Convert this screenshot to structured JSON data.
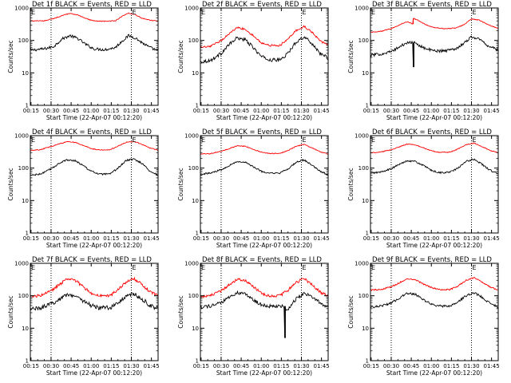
{
  "figure": {
    "xlabel": "Start Time (22-Apr-07 00:12:20)",
    "ylabel": "Counts/sec",
    "x_tick_labels": [
      "00:15",
      "00:30",
      "00:45",
      "01:00",
      "01:15",
      "01:30",
      "01:45"
    ],
    "y_tick_labels": [
      "1",
      "10",
      "100",
      "1000"
    ],
    "marker_label": "E",
    "colors": {
      "events": "#000000",
      "lld": "#ff0000",
      "dotted": "#000000"
    }
  },
  "chart_data": [
    {
      "type": "line",
      "title": "Det 1f BLACK = Events, RED = LLD",
      "xlabel": "Start Time (22-Apr-07 00:12:20)",
      "ylabel": "Counts/sec",
      "x_unit": "minutes after 00:00",
      "xlim": [
        14.5,
        110
      ],
      "ylim": [
        1,
        1000
      ],
      "y_scale": "log",
      "dotted_vlines": [
        30,
        90
      ],
      "markers": [
        {
          "x": 14.5,
          "label": "E"
        },
        {
          "x": 90,
          "label": "E"
        }
      ],
      "series": [
        {
          "name": "Events",
          "color": "#000000",
          "x": [
            14.5,
            25,
            32,
            38,
            44,
            50,
            56,
            62,
            70,
            78,
            83,
            88,
            93,
            98,
            104,
            110
          ],
          "y": [
            50,
            55,
            65,
            110,
            140,
            115,
            75,
            55,
            52,
            60,
            95,
            140,
            120,
            85,
            60,
            48
          ],
          "noise": 0.1
        },
        {
          "name": "LLD",
          "color": "#ff0000",
          "x": [
            14.5,
            25,
            32,
            38,
            44,
            50,
            56,
            62,
            70,
            78,
            83,
            88,
            93,
            98,
            104,
            110
          ],
          "y": [
            400,
            400,
            470,
            580,
            680,
            600,
            470,
            400,
            390,
            400,
            550,
            700,
            620,
            480,
            420,
            390
          ],
          "noise": 0.03
        }
      ]
    },
    {
      "type": "line",
      "title": "Det 2f BLACK = Events, RED = LLD",
      "xlabel": "Start Time (22-Apr-07 00:12:20)",
      "ylabel": "Counts/sec",
      "x_unit": "minutes after 00:00",
      "xlim": [
        14.5,
        110
      ],
      "ylim": [
        1,
        1000
      ],
      "y_scale": "log",
      "dotted_vlines": [
        30,
        90
      ],
      "markers": [
        {
          "x": 14.5,
          "label": "E"
        },
        {
          "x": 90,
          "label": "E"
        }
      ],
      "series": [
        {
          "name": "Events",
          "color": "#000000",
          "x": [
            14.5,
            22,
            30,
            36,
            42,
            48,
            54,
            60,
            66,
            74,
            80,
            86,
            92,
            98,
            104,
            110
          ],
          "y": [
            22,
            24,
            40,
            75,
            120,
            105,
            60,
            32,
            25,
            25,
            40,
            90,
            130,
            80,
            40,
            28
          ],
          "noise": 0.12
        },
        {
          "name": "LLD",
          "color": "#ff0000",
          "x": [
            14.5,
            22,
            30,
            36,
            42,
            48,
            54,
            60,
            66,
            74,
            80,
            86,
            92,
            98,
            104,
            110
          ],
          "y": [
            60,
            65,
            100,
            160,
            250,
            220,
            140,
            85,
            70,
            70,
            110,
            200,
            270,
            180,
            95,
            75
          ],
          "noise": 0.07
        }
      ]
    },
    {
      "type": "line",
      "title": "Det 3f BLACK = Events, RED = LLD",
      "xlabel": "Start Time (22-Apr-07 00:12:20)",
      "ylabel": "Counts/sec",
      "x_unit": "minutes after 00:00",
      "xlim": [
        14.5,
        110
      ],
      "ylim": [
        1,
        1000
      ],
      "y_scale": "log",
      "dotted_vlines": [
        30,
        90
      ],
      "markers": [
        {
          "x": 14.5,
          "label": "E"
        },
        {
          "x": 90,
          "label": "E"
        }
      ],
      "series": [
        {
          "name": "Events",
          "color": "#000000",
          "x": [
            14.5,
            22,
            30,
            38,
            44,
            46,
            46.5,
            47,
            50,
            56,
            62,
            70,
            78,
            84,
            90,
            96,
            102,
            110
          ],
          "y": [
            35,
            38,
            45,
            70,
            90,
            85,
            15,
            90,
            75,
            55,
            48,
            48,
            55,
            80,
            130,
            110,
            70,
            50
          ],
          "noise": 0.1
        },
        {
          "name": "LLD",
          "color": "#ff0000",
          "x": [
            14.5,
            22,
            30,
            36,
            42,
            46,
            46.5,
            50,
            56,
            62,
            70,
            78,
            84,
            90,
            96,
            102,
            110
          ],
          "y": [
            180,
            190,
            230,
            300,
            380,
            320,
            480,
            420,
            300,
            250,
            230,
            240,
            300,
            460,
            420,
            310,
            230
          ],
          "noise": 0.03
        }
      ]
    },
    {
      "type": "line",
      "title": "Det 4f BLACK = Events, RED = LLD",
      "xlabel": "Start Time (22-Apr-07 00:12:20)",
      "ylabel": "Counts/sec",
      "x_unit": "minutes after 00:00",
      "xlim": [
        14.5,
        110
      ],
      "ylim": [
        1,
        1000
      ],
      "y_scale": "log",
      "dotted_vlines": [
        30,
        90
      ],
      "markers": [
        {
          "x": 14.5,
          "label": "E"
        },
        {
          "x": 90,
          "label": "E"
        }
      ],
      "series": [
        {
          "name": "Events",
          "color": "#000000",
          "x": [
            14.5,
            22,
            30,
            36,
            42,
            48,
            54,
            60,
            66,
            74,
            80,
            86,
            92,
            98,
            104,
            110
          ],
          "y": [
            60,
            65,
            95,
            140,
            180,
            170,
            120,
            80,
            65,
            65,
            100,
            170,
            190,
            140,
            80,
            60
          ],
          "noise": 0.06
        },
        {
          "name": "LLD",
          "color": "#ff0000",
          "x": [
            14.5,
            22,
            30,
            36,
            42,
            48,
            54,
            60,
            66,
            74,
            80,
            86,
            92,
            98,
            104,
            110
          ],
          "y": [
            350,
            370,
            460,
            560,
            650,
            620,
            500,
            400,
            360,
            370,
            470,
            620,
            660,
            540,
            420,
            360
          ],
          "noise": 0.03
        }
      ]
    },
    {
      "type": "line",
      "title": "Det 5f BLACK = Events, RED = LLD",
      "xlabel": "Start Time (22-Apr-07 00:12:20)",
      "ylabel": "Counts/sec",
      "x_unit": "minutes after 00:00",
      "xlim": [
        14.5,
        110
      ],
      "ylim": [
        1,
        1000
      ],
      "y_scale": "log",
      "dotted_vlines": [
        30,
        90
      ],
      "markers": [
        {
          "x": 14.5,
          "label": "E"
        },
        {
          "x": 90,
          "label": "E"
        }
      ],
      "series": [
        {
          "name": "Events",
          "color": "#000000",
          "x": [
            14.5,
            22,
            30,
            36,
            42,
            48,
            54,
            60,
            66,
            74,
            80,
            86,
            92,
            98,
            104,
            110
          ],
          "y": [
            65,
            70,
            90,
            120,
            160,
            150,
            110,
            80,
            68,
            70,
            95,
            150,
            180,
            120,
            80,
            62
          ],
          "noise": 0.06
        },
        {
          "name": "LLD",
          "color": "#ff0000",
          "x": [
            14.5,
            22,
            30,
            36,
            42,
            48,
            54,
            60,
            66,
            74,
            80,
            86,
            92,
            98,
            104,
            110
          ],
          "y": [
            270,
            280,
            330,
            400,
            490,
            470,
            380,
            310,
            280,
            285,
            350,
            470,
            540,
            420,
            320,
            270
          ],
          "noise": 0.03
        }
      ]
    },
    {
      "type": "line",
      "title": "Det 6f BLACK = Events, RED = LLD",
      "xlabel": "Start Time (22-Apr-07 00:12:20)",
      "ylabel": "Counts/sec",
      "x_unit": "minutes after 00:00",
      "xlim": [
        14.5,
        110
      ],
      "ylim": [
        1,
        1000
      ],
      "y_scale": "log",
      "dotted_vlines": [
        30,
        90
      ],
      "markers": [
        {
          "x": 14.5,
          "label": "E"
        },
        {
          "x": 90,
          "label": "E"
        }
      ],
      "series": [
        {
          "name": "Events",
          "color": "#000000",
          "x": [
            14.5,
            22,
            30,
            36,
            42,
            48,
            54,
            60,
            66,
            74,
            80,
            86,
            92,
            98,
            104,
            110
          ],
          "y": [
            70,
            75,
            95,
            130,
            170,
            160,
            120,
            85,
            72,
            75,
            100,
            160,
            190,
            130,
            85,
            68
          ],
          "noise": 0.06
        },
        {
          "name": "LLD",
          "color": "#ff0000",
          "x": [
            14.5,
            22,
            30,
            36,
            42,
            48,
            54,
            60,
            66,
            74,
            80,
            86,
            92,
            98,
            104,
            110
          ],
          "y": [
            300,
            310,
            370,
            450,
            550,
            520,
            420,
            340,
            305,
            310,
            390,
            520,
            590,
            460,
            350,
            300
          ],
          "noise": 0.03
        }
      ]
    },
    {
      "type": "line",
      "title": "Det 7f BLACK = Events, RED = LLD",
      "xlabel": "Start Time (22-Apr-07 00:12:20)",
      "ylabel": "Counts/sec",
      "x_unit": "minutes after 00:00",
      "xlim": [
        14.5,
        110
      ],
      "ylim": [
        1,
        1000
      ],
      "y_scale": "log",
      "dotted_vlines": [
        30,
        90
      ],
      "markers": [
        {
          "x": 14.5,
          "label": "E"
        },
        {
          "x": 90,
          "label": "E"
        }
      ],
      "series": [
        {
          "name": "Events",
          "color": "#000000",
          "x": [
            14.5,
            22,
            30,
            36,
            42,
            48,
            54,
            60,
            66,
            74,
            80,
            86,
            92,
            98,
            104,
            110
          ],
          "y": [
            40,
            42,
            55,
            80,
            110,
            100,
            70,
            50,
            42,
            43,
            60,
            95,
            115,
            80,
            50,
            40
          ],
          "noise": 0.15
        },
        {
          "name": "LLD",
          "color": "#ff0000",
          "x": [
            14.5,
            22,
            30,
            36,
            42,
            48,
            54,
            60,
            66,
            74,
            80,
            86,
            92,
            98,
            104,
            110
          ],
          "y": [
            95,
            100,
            140,
            220,
            330,
            300,
            190,
            120,
            100,
            100,
            150,
            260,
            340,
            220,
            130,
            100
          ],
          "noise": 0.1
        }
      ]
    },
    {
      "type": "line",
      "title": "Det 8f BLACK = Events, RED = LLD",
      "xlabel": "Start Time (22-Apr-07 00:12:20)",
      "ylabel": "Counts/sec",
      "x_unit": "minutes after 00:00",
      "xlim": [
        14.5,
        110
      ],
      "ylim": [
        1,
        1000
      ],
      "y_scale": "log",
      "dotted_vlines": [
        30,
        90
      ],
      "markers": [
        {
          "x": 14.5,
          "label": "E"
        },
        {
          "x": 90,
          "label": "E"
        }
      ],
      "series": [
        {
          "name": "Events",
          "color": "#000000",
          "x": [
            14.5,
            22,
            30,
            36,
            42,
            48,
            54,
            60,
            66,
            72,
            76,
            77,
            77.5,
            78,
            79,
            82,
            86,
            92,
            98,
            104,
            110
          ],
          "y": [
            45,
            48,
            60,
            90,
            125,
            115,
            75,
            52,
            48,
            48,
            48,
            48,
            5,
            48,
            35,
            50,
            80,
            120,
            95,
            60,
            42
          ],
          "noise": 0.12
        },
        {
          "name": "LLD",
          "color": "#ff0000",
          "x": [
            14.5,
            22,
            30,
            36,
            42,
            48,
            54,
            60,
            66,
            74,
            80,
            86,
            92,
            98,
            104,
            110
          ],
          "y": [
            95,
            100,
            140,
            220,
            330,
            300,
            190,
            120,
            100,
            100,
            150,
            260,
            340,
            220,
            130,
            100
          ],
          "noise": 0.1
        }
      ]
    },
    {
      "type": "line",
      "title": "Det 9f BLACK = Events, RED = LLD",
      "xlabel": "Start Time (22-Apr-07 00:12:20)",
      "ylabel": "Counts/sec",
      "x_unit": "minutes after 00:00",
      "xlim": [
        14.5,
        110
      ],
      "ylim": [
        1,
        1000
      ],
      "y_scale": "log",
      "dotted_vlines": [
        30,
        90
      ],
      "markers": [
        {
          "x": 14.5,
          "label": "E"
        },
        {
          "x": 90,
          "label": "E"
        }
      ],
      "series": [
        {
          "name": "Events",
          "color": "#000000",
          "x": [
            14.5,
            22,
            30,
            36,
            42,
            48,
            54,
            60,
            66,
            74,
            80,
            86,
            92,
            98,
            104,
            110
          ],
          "y": [
            45,
            48,
            60,
            85,
            120,
            110,
            75,
            55,
            48,
            48,
            65,
            100,
            125,
            90,
            58,
            45
          ],
          "noise": 0.08
        },
        {
          "name": "LLD",
          "color": "#ff0000",
          "x": [
            14.5,
            22,
            30,
            36,
            42,
            48,
            54,
            60,
            66,
            74,
            80,
            86,
            92,
            98,
            104,
            110
          ],
          "y": [
            150,
            155,
            190,
            250,
            330,
            310,
            230,
            180,
            155,
            155,
            200,
            300,
            360,
            260,
            185,
            150
          ],
          "noise": 0.05
        }
      ]
    }
  ]
}
